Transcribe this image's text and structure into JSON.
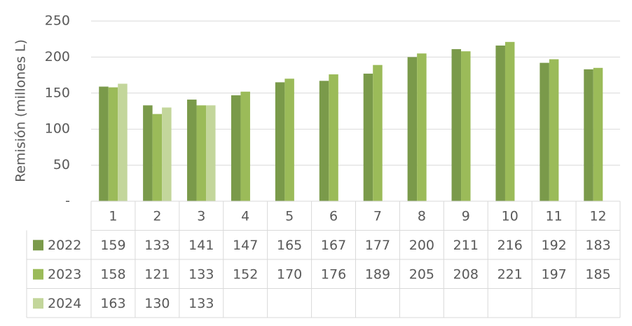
{
  "chart_data": {
    "type": "bar",
    "y_label": "Remisión (millones L)",
    "categories": [
      "1",
      "2",
      "3",
      "4",
      "5",
      "6",
      "7",
      "8",
      "9",
      "10",
      "11",
      "12"
    ],
    "series": [
      {
        "name": "2022",
        "color": "#7a9a4a",
        "values": [
          159,
          133,
          141,
          147,
          165,
          167,
          177,
          200,
          211,
          216,
          192,
          183
        ]
      },
      {
        "name": "2023",
        "color": "#9bbb59",
        "values": [
          158,
          121,
          133,
          152,
          170,
          176,
          189,
          205,
          208,
          221,
          197,
          185
        ]
      },
      {
        "name": "2024",
        "color": "#c3d69b",
        "values": [
          163,
          130,
          133,
          null,
          null,
          null,
          null,
          null,
          null,
          null,
          null,
          null
        ]
      }
    ],
    "ylim": [
      0,
      250
    ],
    "yticks": [
      {
        "value": 0,
        "label": "-"
      },
      50,
      100,
      150,
      200,
      250
    ],
    "grid": true,
    "data_table": true
  }
}
